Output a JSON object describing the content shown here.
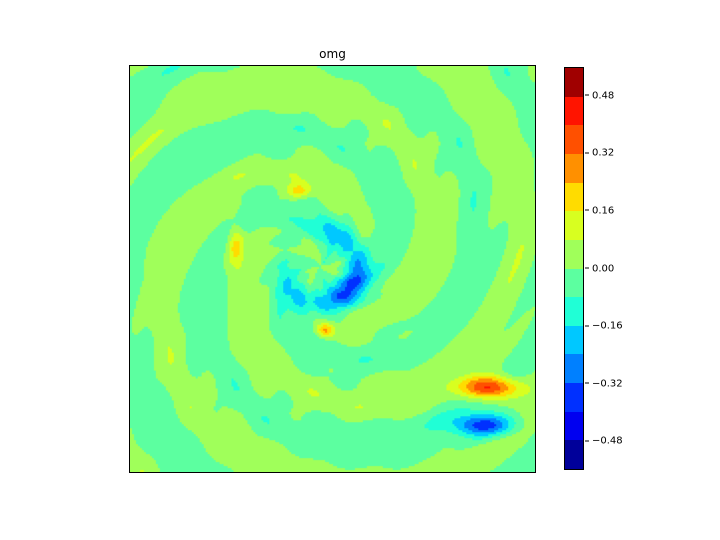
{
  "chart_data": {
    "type": "heatmap",
    "subtype": "filled contour",
    "title": "omg",
    "colormap": "jet",
    "levels": [
      -0.56,
      -0.48,
      -0.4,
      -0.32,
      -0.24,
      -0.16,
      -0.08,
      0.0,
      0.08,
      0.16,
      0.24,
      0.32,
      0.4,
      0.48,
      0.56
    ],
    "band_colors": [
      "#00009a",
      "#0000f0",
      "#0030ff",
      "#0080ff",
      "#00c8ff",
      "#20ffd6",
      "#5cffa0",
      "#a0ff5a",
      "#d8ff20",
      "#ffdc00",
      "#ff9000",
      "#ff5000",
      "#ff1400",
      "#a00000"
    ],
    "colorbar_ticks": [
      "−0.48",
      "−0.32",
      "−0.16",
      "0.00",
      "0.16",
      "0.32",
      "0.48"
    ],
    "colorbar_tick_values": [
      -0.48,
      -0.32,
      -0.16,
      0.0,
      0.16,
      0.32,
      0.48
    ],
    "features": "spiral vortex of alternating weak positive/negative bands; negative ring near center; strong positive/negative dipole in lower right"
  }
}
